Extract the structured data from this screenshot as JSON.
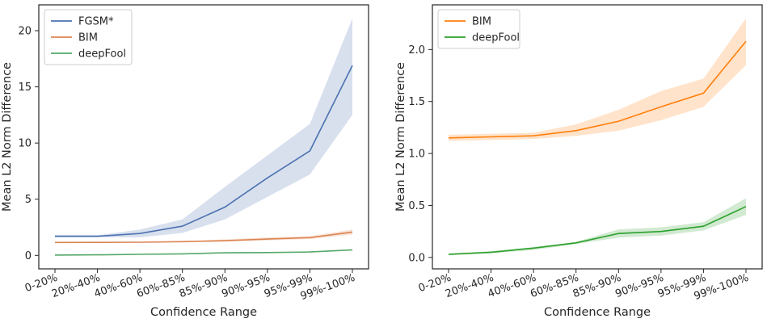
{
  "chart_data": [
    {
      "type": "line",
      "xlabel": "Confidence Range",
      "ylabel": "Mean L2 Norm Difference",
      "categories": [
        "0-20%",
        "20%-40%",
        "40%-60%",
        "60%-85%",
        "85%-90%",
        "90%-95%",
        "95%-99%",
        "99%-100%"
      ],
      "ylim": [
        -1.2,
        22.3
      ],
      "yticks": [
        "0",
        "5",
        "10",
        "15",
        "20"
      ],
      "legend": "top-left",
      "grid": false,
      "series": [
        {
          "name": "FGSM*",
          "color": "#4c72b0",
          "values": [
            1.7,
            1.7,
            1.95,
            2.6,
            4.3,
            6.9,
            9.3,
            16.9
          ],
          "lower": [
            1.6,
            1.6,
            1.6,
            2.0,
            3.2,
            5.2,
            7.2,
            12.5
          ],
          "upper": [
            1.8,
            1.8,
            2.3,
            3.2,
            6.1,
            8.9,
            11.7,
            21.1
          ]
        },
        {
          "name": "BIM",
          "color": "#dd8452",
          "values": [
            1.15,
            1.16,
            1.17,
            1.22,
            1.31,
            1.45,
            1.58,
            2.08
          ],
          "lower": [
            1.12,
            1.13,
            1.14,
            1.17,
            1.22,
            1.32,
            1.45,
            1.85
          ],
          "upper": [
            1.18,
            1.19,
            1.2,
            1.28,
            1.42,
            1.6,
            1.72,
            2.3
          ]
        },
        {
          "name": "deepFool",
          "color": "#55a868",
          "values": [
            0.03,
            0.05,
            0.09,
            0.14,
            0.23,
            0.25,
            0.3,
            0.49
          ],
          "lower": [
            0.02,
            0.04,
            0.07,
            0.13,
            0.19,
            0.21,
            0.26,
            0.41
          ],
          "upper": [
            0.04,
            0.06,
            0.1,
            0.15,
            0.27,
            0.29,
            0.34,
            0.57
          ]
        }
      ]
    },
    {
      "type": "line",
      "xlabel": "Confidence Range",
      "ylabel": "Mean L2 Norm Difference",
      "categories": [
        "0-20%",
        "20%-40%",
        "40%-60%",
        "60%-85%",
        "85%-90%",
        "90%-95%",
        "95%-99%",
        "99%-100%"
      ],
      "ylim": [
        -0.11,
        2.43
      ],
      "yticks": [
        "0.0",
        "0.5",
        "1.0",
        "1.5",
        "2.0"
      ],
      "legend": "top-left",
      "grid": false,
      "series": [
        {
          "name": "BIM",
          "color": "#ff7f0e",
          "values": [
            1.15,
            1.16,
            1.17,
            1.22,
            1.31,
            1.45,
            1.58,
            2.08
          ],
          "lower": [
            1.12,
            1.13,
            1.14,
            1.17,
            1.22,
            1.32,
            1.45,
            1.85
          ],
          "upper": [
            1.18,
            1.19,
            1.2,
            1.28,
            1.42,
            1.6,
            1.72,
            2.3
          ]
        },
        {
          "name": "deepFool",
          "color": "#2ca02c",
          "values": [
            0.03,
            0.05,
            0.09,
            0.14,
            0.23,
            0.25,
            0.3,
            0.49
          ],
          "lower": [
            0.02,
            0.04,
            0.07,
            0.13,
            0.19,
            0.21,
            0.26,
            0.41
          ],
          "upper": [
            0.04,
            0.06,
            0.1,
            0.15,
            0.27,
            0.29,
            0.34,
            0.57
          ]
        }
      ]
    }
  ]
}
